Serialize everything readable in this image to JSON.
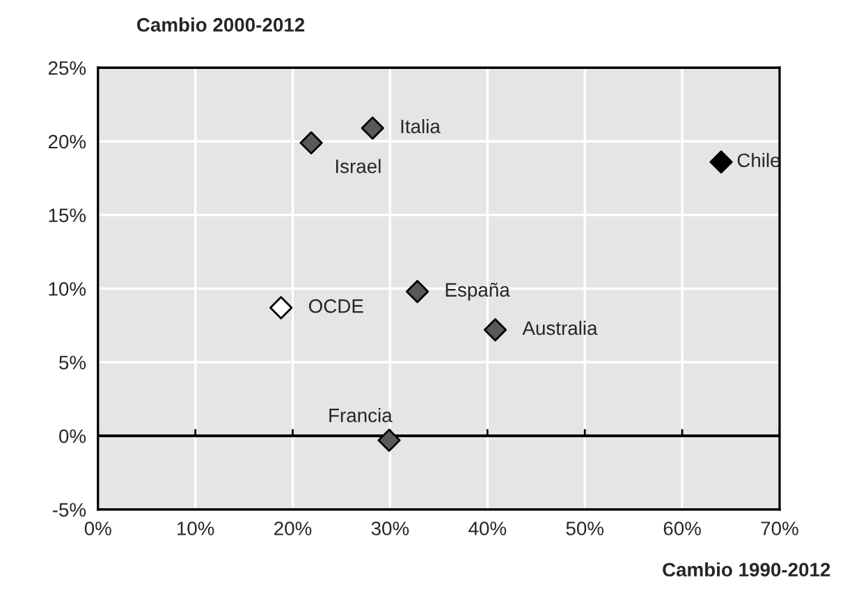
{
  "chart_data": {
    "type": "scatter",
    "xlabel": "Cambio 1990-2012",
    "ylabel": "Cambio 2000-2012",
    "xlim": [
      0,
      70
    ],
    "ylim": [
      -5,
      25
    ],
    "xticks": [
      {
        "value": 0,
        "label": "0%"
      },
      {
        "value": 10,
        "label": "10%"
      },
      {
        "value": 20,
        "label": "20%"
      },
      {
        "value": 30,
        "label": "30%"
      },
      {
        "value": 40,
        "label": "40%"
      },
      {
        "value": 50,
        "label": "50%"
      },
      {
        "value": 60,
        "label": "60%"
      },
      {
        "value": 70,
        "label": "70%"
      }
    ],
    "yticks": [
      {
        "value": -5,
        "label": "-5%"
      },
      {
        "value": 0,
        "label": "0%"
      },
      {
        "value": 5,
        "label": "5%"
      },
      {
        "value": 10,
        "label": "10%"
      },
      {
        "value": 15,
        "label": "15%"
      },
      {
        "value": 20,
        "label": "20%"
      },
      {
        "value": 25,
        "label": "25%"
      }
    ],
    "grid": true,
    "legend": false,
    "marker": "diamond",
    "ref_lines": [
      {
        "axis": "y",
        "value": 0,
        "color": "#000000"
      }
    ],
    "series": [
      {
        "name": "Italia",
        "color": "#595959",
        "x": [
          28.2
        ],
        "values": [
          20.9
        ]
      },
      {
        "name": "Israel",
        "color": "#595959",
        "x": [
          21.9
        ],
        "values": [
          19.9
        ]
      },
      {
        "name": "Chile",
        "color": "#000000",
        "x": [
          64.0
        ],
        "values": [
          18.6
        ]
      },
      {
        "name": "España",
        "color": "#595959",
        "x": [
          32.8
        ],
        "values": [
          9.8
        ]
      },
      {
        "name": "OCDE",
        "color": "#ffffff",
        "x": [
          18.8
        ],
        "values": [
          8.7
        ]
      },
      {
        "name": "Australia",
        "color": "#595959",
        "x": [
          40.8
        ],
        "values": [
          7.2
        ]
      },
      {
        "name": "Francia",
        "color": "#595959",
        "x": [
          29.9
        ],
        "values": [
          -0.3
        ]
      }
    ]
  }
}
